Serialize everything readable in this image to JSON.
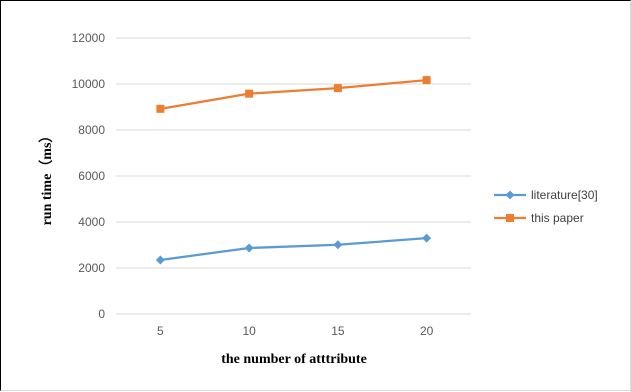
{
  "chart_data": {
    "type": "line",
    "x": [
      5,
      10,
      15,
      20
    ],
    "categories": [
      "5",
      "10",
      "15",
      "20"
    ],
    "series": [
      {
        "name": "literature[30]",
        "values": [
          2350,
          2870,
          3010,
          3300
        ],
        "color": "#5b9bd5",
        "marker": "diamond"
      },
      {
        "name": "this paper",
        "values": [
          8920,
          9580,
          9820,
          10170
        ],
        "color": "#ed7d31",
        "marker": "square"
      }
    ],
    "xlabel": "the number of atttribute",
    "ylabel": "run time（ms）",
    "ylim": [
      0,
      12000
    ],
    "yticks": [
      0,
      2000,
      4000,
      6000,
      8000,
      10000,
      12000
    ],
    "ytick_labels": [
      "0",
      "2000",
      "4000",
      "6000",
      "8000",
      "10000",
      "12000"
    ],
    "grid": "horizontal",
    "legend_position": "right"
  }
}
